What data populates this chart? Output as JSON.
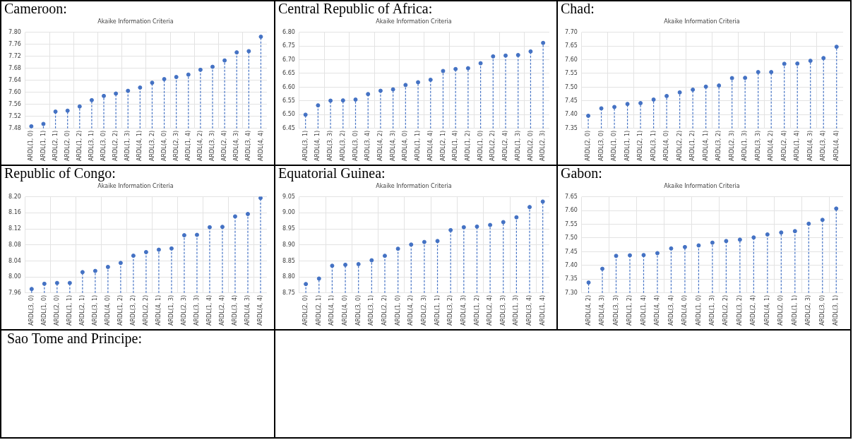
{
  "chart_data": [
    {
      "type": "lollipop",
      "title": "Cameroon:",
      "subtitle": "Akaike Information Criteria",
      "color": "#4472c4",
      "grid": true,
      "marker": "circle",
      "line_style": "dashed",
      "categories": [
        "ARDL(1, 0)",
        "ARDL(1, 1)",
        "ARDL(2, 1)",
        "ARDL(2, 0)",
        "ARDL(1, 2)",
        "ARDL(3, 1)",
        "ARDL(3, 0)",
        "ARDL(2, 2)",
        "ARDL(1, 3)",
        "ARDL(4, 1)",
        "ARDL(3, 2)",
        "ARDL(4, 0)",
        "ARDL(2, 3)",
        "ARDL(1, 4)",
        "ARDL(4, 2)",
        "ARDL(3, 3)",
        "ARDL(2, 4)",
        "ARDL(4, 3)",
        "ARDL(3, 4)",
        "ARDL(4, 4)"
      ],
      "values": [
        7.487,
        7.495,
        7.536,
        7.539,
        7.553,
        7.574,
        7.588,
        7.596,
        7.605,
        7.616,
        7.632,
        7.644,
        7.651,
        7.659,
        7.675,
        7.685,
        7.706,
        7.733,
        7.737,
        7.785
      ],
      "ylim": [
        7.48,
        7.8
      ],
      "yticks": [
        7.48,
        7.52,
        7.56,
        {
          "value": 7.6,
          "label": "7.60"
        },
        7.64,
        7.68,
        7.72,
        7.76,
        {
          "value": 7.8,
          "label": "7.80"
        }
      ]
    },
    {
      "type": "lollipop",
      "title": "Central Republic of Africa:",
      "subtitle": "Akaike Information Criteria",
      "color": "#4472c4",
      "grid": true,
      "marker": "circle",
      "line_style": "dashed",
      "categories": [
        "ARDL(3, 1)",
        "ARDL(4, 1)",
        "ARDL(3, 3)",
        "ARDL(3, 2)",
        "ARDL(3, 0)",
        "ARDL(3, 4)",
        "ARDL(4, 2)",
        "ARDL(4, 3)",
        "ARDL(4, 0)",
        "ARDL(1, 1)",
        "ARDL(4, 4)",
        "ARDL(2, 1)",
        "ARDL(1, 4)",
        "ARDL(1, 2)",
        "ARDL(1, 0)",
        "ARDL(2, 2)",
        "ARDL(2, 4)",
        "ARDL(1, 3)",
        "ARDL(2, 0)",
        "ARDL(2, 3)"
      ],
      "values": [
        6.5,
        6.534,
        6.551,
        6.552,
        6.555,
        6.575,
        6.587,
        6.592,
        6.608,
        6.618,
        6.627,
        6.659,
        6.666,
        6.669,
        6.687,
        6.712,
        6.715,
        6.717,
        6.73,
        6.761
      ],
      "ylim": [
        6.45,
        6.8
      ],
      "yticks": [
        6.45,
        {
          "value": 6.5,
          "label": "6.50"
        },
        6.55,
        {
          "value": 6.6,
          "label": "6.60"
        },
        6.65,
        {
          "value": 6.7,
          "label": "6.70"
        },
        6.75,
        {
          "value": 6.8,
          "label": "6.80"
        }
      ]
    },
    {
      "type": "lollipop",
      "title": "Chad:",
      "subtitle": "Akaike Information Criteria",
      "color": "#4472c4",
      "grid": true,
      "marker": "circle",
      "line_style": "dashed",
      "categories": [
        "ARDL(2, 0)",
        "ARDL(3, 0)",
        "ARDL(1, 0)",
        "ARDL(1, 1)",
        "ARDL(2, 1)",
        "ARDL(3, 1)",
        "ARDL(4, 0)",
        "ARDL(2, 2)",
        "ARDL(1, 2)",
        "ARDL(4, 1)",
        "ARDL(3, 2)",
        "ARDL(2, 3)",
        "ARDL(1, 3)",
        "ARDL(3, 3)",
        "ARDL(4, 2)",
        "ARDL(2, 4)",
        "ARDL(1, 4)",
        "ARDL(4, 3)",
        "ARDL(3, 4)",
        "ARDL(4, 4)"
      ],
      "values": [
        7.396,
        7.423,
        7.428,
        7.439,
        7.442,
        7.455,
        7.468,
        7.481,
        7.491,
        7.502,
        7.506,
        7.533,
        7.534,
        7.555,
        7.555,
        7.585,
        7.586,
        7.596,
        7.606,
        7.647
      ],
      "ylim": [
        7.35,
        7.7
      ],
      "yticks": [
        7.35,
        {
          "value": 7.4,
          "label": "7.40"
        },
        7.45,
        {
          "value": 7.5,
          "label": "7.50"
        },
        7.55,
        {
          "value": 7.6,
          "label": "7.60"
        },
        7.65,
        {
          "value": 7.7,
          "label": "7.70"
        }
      ]
    },
    {
      "type": "lollipop",
      "title": "Republic of Congo:",
      "subtitle": "Akaike Information Criteria",
      "color": "#4472c4",
      "grid": true,
      "marker": "circle",
      "line_style": "dashed",
      "categories": [
        "ARDL(3, 0)",
        "ARDL(1, 0)",
        "ARDL(2, 0)",
        "ARDL(1, 1)",
        "ARDL(2, 1)",
        "ARDL(3, 1)",
        "ARDL(4, 0)",
        "ARDL(1, 2)",
        "ARDL(3, 2)",
        "ARDL(2, 2)",
        "ARDL(4, 1)",
        "ARDL(1, 3)",
        "ARDL(2, 3)",
        "ARDL(3, 3)",
        "ARDL(1, 4)",
        "ARDL(2, 4)",
        "ARDL(3, 4)",
        "ARDL(4, 3)",
        "ARDL(4, 4)"
      ],
      "values": [
        7.97,
        7.983,
        7.985,
        7.985,
        8.012,
        8.015,
        8.025,
        8.035,
        8.053,
        8.062,
        8.068,
        8.071,
        8.104,
        8.105,
        8.124,
        8.125,
        8.151,
        8.157,
        8.197
      ],
      "ylim": [
        7.96,
        8.2
      ],
      "yticks": [
        7.96,
        {
          "value": 8,
          "label": "8.00"
        },
        8.04,
        8.08,
        8.12,
        8.16,
        {
          "value": 8.2,
          "label": "8.20"
        }
      ]
    },
    {
      "type": "lollipop",
      "title": "Equatorial Guinea:",
      "subtitle": "Akaike Information Criteria",
      "color": "#4472c4",
      "grid": true,
      "marker": "circle",
      "line_style": "dashed",
      "categories": [
        "ARDL(2, 0)",
        "ARDL(2, 1)",
        "ARDL(4, 1)",
        "ARDL(4, 0)",
        "ARDL(3, 0)",
        "ARDL(3, 1)",
        "ARDL(2, 2)",
        "ARDL(1, 0)",
        "ARDL(4, 2)",
        "ARDL(2, 3)",
        "ARDL(1, 1)",
        "ARDL(3, 2)",
        "ARDL(4, 3)",
        "ARDL(1, 2)",
        "ARDL(2, 4)",
        "ARDL(3, 3)",
        "ARDL(1, 3)",
        "ARDL(3, 4)",
        "ARDL(1, 4)"
      ],
      "values": [
        8.778,
        8.795,
        8.835,
        8.838,
        8.84,
        8.852,
        8.866,
        8.888,
        8.901,
        8.909,
        8.912,
        8.946,
        8.955,
        8.957,
        8.962,
        8.971,
        8.986,
        9.018,
        9.035
      ],
      "ylim": [
        8.75,
        9.05
      ],
      "yticks": [
        8.75,
        {
          "value": 8.8,
          "label": "8.80"
        },
        8.85,
        {
          "value": 8.9,
          "label": "8.90"
        },
        8.95,
        {
          "value": 9,
          "label": "9.00"
        },
        9.05
      ]
    },
    {
      "type": "lollipop",
      "title": "Gabon:",
      "subtitle": "Akaike Information Criteria",
      "color": "#4472c4",
      "grid": true,
      "marker": "circle",
      "line_style": "dashed",
      "categories": [
        "ARDL(4, 2)",
        "ARDL(4, 3)",
        "ARDL(3, 3)",
        "ARDL(1, 2)",
        "ARDL(1, 4)",
        "ARDL(4, 4)",
        "ARDL(3, 4)",
        "ARDL(4, 0)",
        "ARDL(1, 0)",
        "ARDL(1, 3)",
        "ARDL(2, 2)",
        "ARDL(3, 2)",
        "ARDL(2, 4)",
        "ARDL(4, 1)",
        "ARDL(2, 0)",
        "ARDL(1, 1)",
        "ARDL(2, 3)",
        "ARDL(3, 0)",
        "ARDL(3, 1)"
      ],
      "values": [
        7.338,
        7.388,
        7.435,
        7.437,
        7.438,
        7.445,
        7.462,
        7.467,
        7.473,
        7.483,
        7.489,
        7.494,
        7.502,
        7.513,
        7.52,
        7.525,
        7.552,
        7.566,
        7.607
      ],
      "ylim": [
        7.3,
        7.65
      ],
      "yticks": [
        {
          "value": 7.3,
          "label": "7.30"
        },
        7.35,
        {
          "value": 7.4,
          "label": "7.40"
        },
        7.45,
        {
          "value": 7.5,
          "label": "7.50"
        },
        7.55,
        {
          "value": 7.6,
          "label": "7.60"
        },
        7.65
      ]
    },
    {
      "type": "other",
      "title": "Sao Tome and Principe:"
    }
  ]
}
